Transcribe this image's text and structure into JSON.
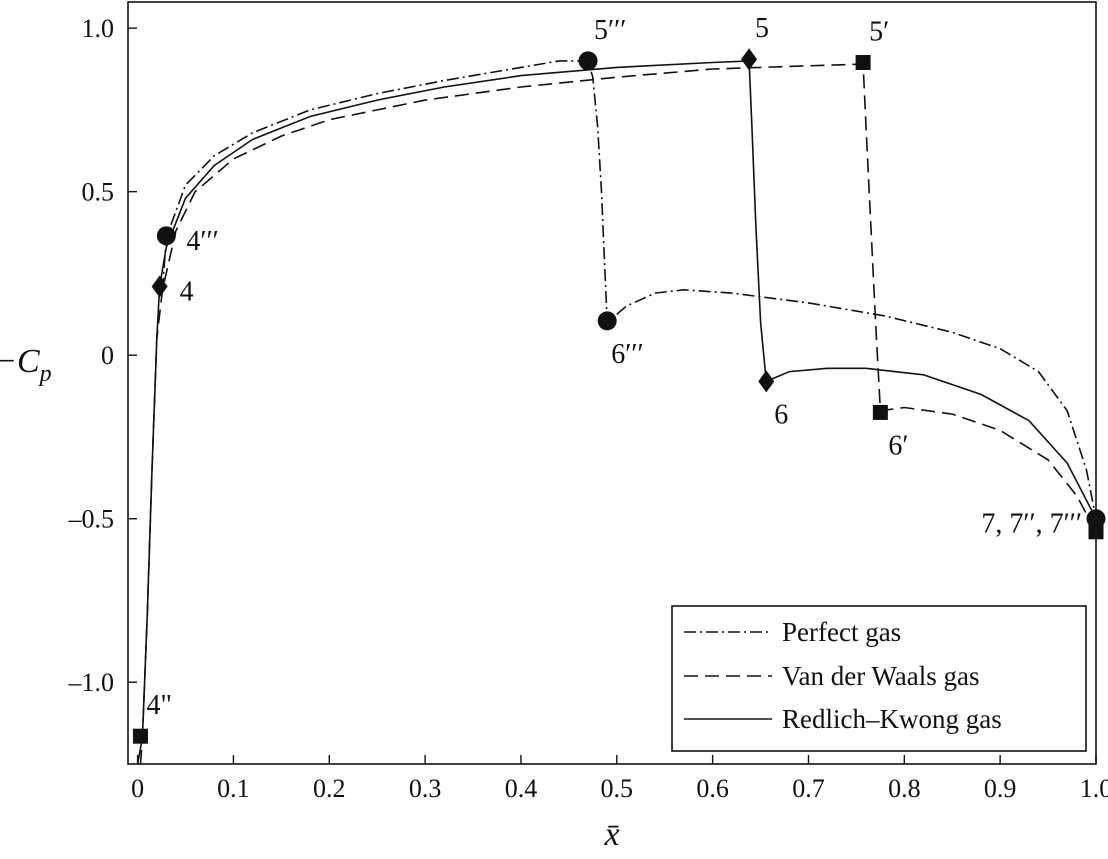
{
  "chart_data": {
    "type": "line",
    "xlabel": "x̄",
    "ylabel": "−C",
    "ylabel_sub": "p",
    "xlim": [
      -0.01,
      1.0
    ],
    "ylim": [
      -1.25,
      1.08
    ],
    "xticks": [
      0,
      0.1,
      0.2,
      0.3,
      0.4,
      0.5,
      0.6,
      0.7,
      0.8,
      0.9,
      1.0
    ],
    "xtick_labels": [
      "0",
      "0.1",
      "0.2",
      "0.3",
      "0.4",
      "0.5",
      "0.6",
      "0.7",
      "0.8",
      "0.9",
      "1.0"
    ],
    "yticks": [
      1.0,
      0.5,
      0,
      -0.5,
      -1.0
    ],
    "ytick_labels": [
      "1.0",
      "0.5",
      "0",
      "–0.5",
      "–1.0"
    ],
    "legend_position": "bottom-right",
    "series": [
      {
        "name": "Perfect gas",
        "dash": "dashdot",
        "marker": "circle",
        "points": [
          [
            0.026,
            0.2
          ],
          [
            0.03,
            0.36
          ],
          [
            0.05,
            0.52
          ],
          [
            0.08,
            0.61
          ],
          [
            0.12,
            0.68
          ],
          [
            0.18,
            0.75
          ],
          [
            0.25,
            0.8
          ],
          [
            0.32,
            0.84
          ],
          [
            0.4,
            0.88
          ],
          [
            0.44,
            0.9
          ],
          [
            0.47,
            0.9
          ],
          [
            0.475,
            0.85
          ],
          [
            0.48,
            0.7
          ],
          [
            0.484,
            0.5
          ],
          [
            0.487,
            0.3
          ],
          [
            0.49,
            0.1
          ],
          [
            0.51,
            0.15
          ],
          [
            0.54,
            0.19
          ],
          [
            0.57,
            0.2
          ],
          [
            0.62,
            0.19
          ],
          [
            0.7,
            0.16
          ],
          [
            0.78,
            0.12
          ],
          [
            0.85,
            0.07
          ],
          [
            0.9,
            0.02
          ],
          [
            0.94,
            -0.05
          ],
          [
            0.97,
            -0.17
          ],
          [
            0.99,
            -0.35
          ],
          [
            1.0,
            -0.5
          ],
          [
            1.0,
            -0.5
          ],
          [
            1.002,
            -0.46
          ],
          [
            1.01,
            -0.42
          ]
        ]
      },
      {
        "name": "Van der Waals gas",
        "dash": "dashed",
        "marker": "square",
        "points": [
          [
            0.003,
            -1.25
          ],
          [
            0.005,
            -1.17
          ],
          [
            0.01,
            -0.8
          ],
          [
            0.015,
            -0.35
          ],
          [
            0.02,
            0.05
          ],
          [
            0.026,
            0.2
          ],
          [
            0.04,
            0.38
          ],
          [
            0.06,
            0.5
          ],
          [
            0.1,
            0.6
          ],
          [
            0.15,
            0.67
          ],
          [
            0.2,
            0.72
          ],
          [
            0.3,
            0.78
          ],
          [
            0.4,
            0.82
          ],
          [
            0.5,
            0.85
          ],
          [
            0.6,
            0.875
          ],
          [
            0.7,
            0.885
          ],
          [
            0.757,
            0.89
          ],
          [
            0.76,
            0.7
          ],
          [
            0.765,
            0.4
          ],
          [
            0.77,
            0.1
          ],
          [
            0.775,
            -0.17
          ],
          [
            0.8,
            -0.16
          ],
          [
            0.85,
            -0.18
          ],
          [
            0.9,
            -0.23
          ],
          [
            0.95,
            -0.32
          ],
          [
            0.98,
            -0.43
          ],
          [
            1.0,
            -0.54
          ]
        ]
      },
      {
        "name": "Redlich–Kwong gas",
        "dash": "solid",
        "marker": "diamond",
        "points": [
          [
            0.0,
            -1.25
          ],
          [
            0.005,
            -1.17
          ],
          [
            0.01,
            -0.8
          ],
          [
            0.015,
            -0.35
          ],
          [
            0.02,
            0.05
          ],
          [
            0.023,
            0.21
          ],
          [
            0.03,
            0.33
          ],
          [
            0.05,
            0.48
          ],
          [
            0.08,
            0.58
          ],
          [
            0.12,
            0.66
          ],
          [
            0.18,
            0.73
          ],
          [
            0.25,
            0.78
          ],
          [
            0.32,
            0.82
          ],
          [
            0.4,
            0.855
          ],
          [
            0.5,
            0.88
          ],
          [
            0.6,
            0.895
          ],
          [
            0.638,
            0.9
          ],
          [
            0.641,
            0.7
          ],
          [
            0.645,
            0.4
          ],
          [
            0.65,
            0.1
          ],
          [
            0.656,
            -0.08
          ],
          [
            0.68,
            -0.05
          ],
          [
            0.72,
            -0.04
          ],
          [
            0.76,
            -0.04
          ],
          [
            0.82,
            -0.06
          ],
          [
            0.88,
            -0.12
          ],
          [
            0.93,
            -0.2
          ],
          [
            0.97,
            -0.33
          ],
          [
            1.0,
            -0.5
          ]
        ]
      }
    ],
    "markers": [
      {
        "shape": "circle",
        "x": 0.47,
        "y": 0.9,
        "label": "5′′′",
        "anchor": "above-right"
      },
      {
        "shape": "diamond",
        "x": 0.638,
        "y": 0.905,
        "label": "5",
        "anchor": "above-right"
      },
      {
        "shape": "square",
        "x": 0.757,
        "y": 0.895,
        "label": "5′",
        "anchor": "above-right"
      },
      {
        "shape": "circle",
        "x": 0.03,
        "y": 0.365,
        "label": "4′′′",
        "anchor": "right"
      },
      {
        "shape": "diamond",
        "x": 0.023,
        "y": 0.21,
        "label": "4",
        "anchor": "right"
      },
      {
        "shape": "circle",
        "x": 0.49,
        "y": 0.105,
        "label": "6′′′",
        "anchor": "below"
      },
      {
        "shape": "diamond",
        "x": 0.656,
        "y": -0.08,
        "label": "6",
        "anchor": "below-right"
      },
      {
        "shape": "square",
        "x": 0.775,
        "y": -0.175,
        "label": "6′",
        "anchor": "below-right"
      },
      {
        "shape": "circle",
        "x": 1.0,
        "y": -0.5,
        "label": "7, 7′′, 7′′′",
        "anchor": "left"
      },
      {
        "shape": "square",
        "x": 1.0,
        "y": -0.54,
        "label": "",
        "anchor": "none"
      },
      {
        "shape": "square",
        "x": 0.003,
        "y": -1.165,
        "label": "4\"",
        "anchor": "above-right"
      }
    ]
  }
}
